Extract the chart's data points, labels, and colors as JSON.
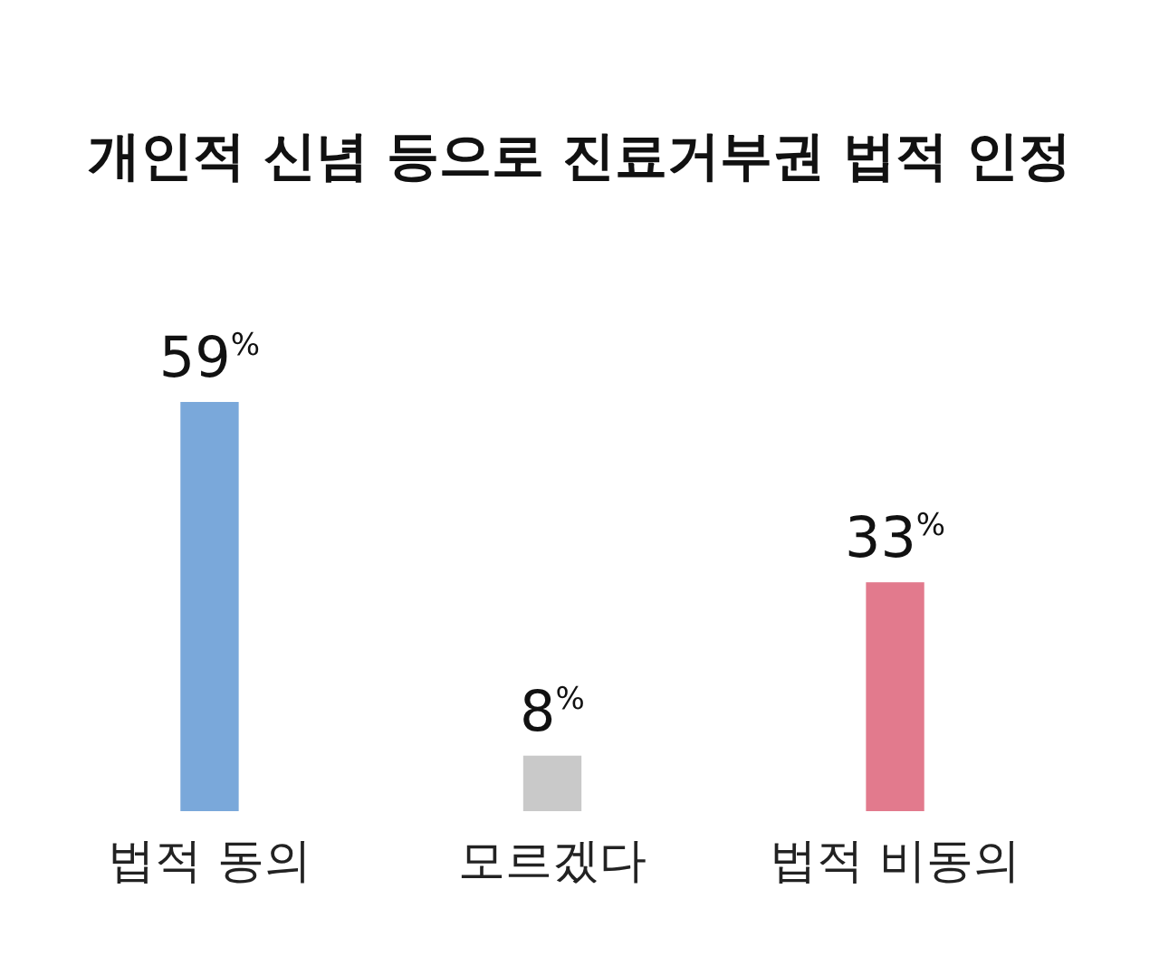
{
  "chart_data": {
    "type": "bar",
    "title": "개인적 신념 등으로 진료거부권 법적 인정",
    "categories": [
      "법적 동의",
      "모르겠다",
      "법적 비동의"
    ],
    "values": [
      59,
      8,
      33
    ],
    "colors": [
      "#7aa8da",
      "#c9c9c9",
      "#e27a8d"
    ],
    "value_labels": [
      "59$^{%}$",
      "8$^{%}$",
      "33$^{%}$"
    ]
  }
}
